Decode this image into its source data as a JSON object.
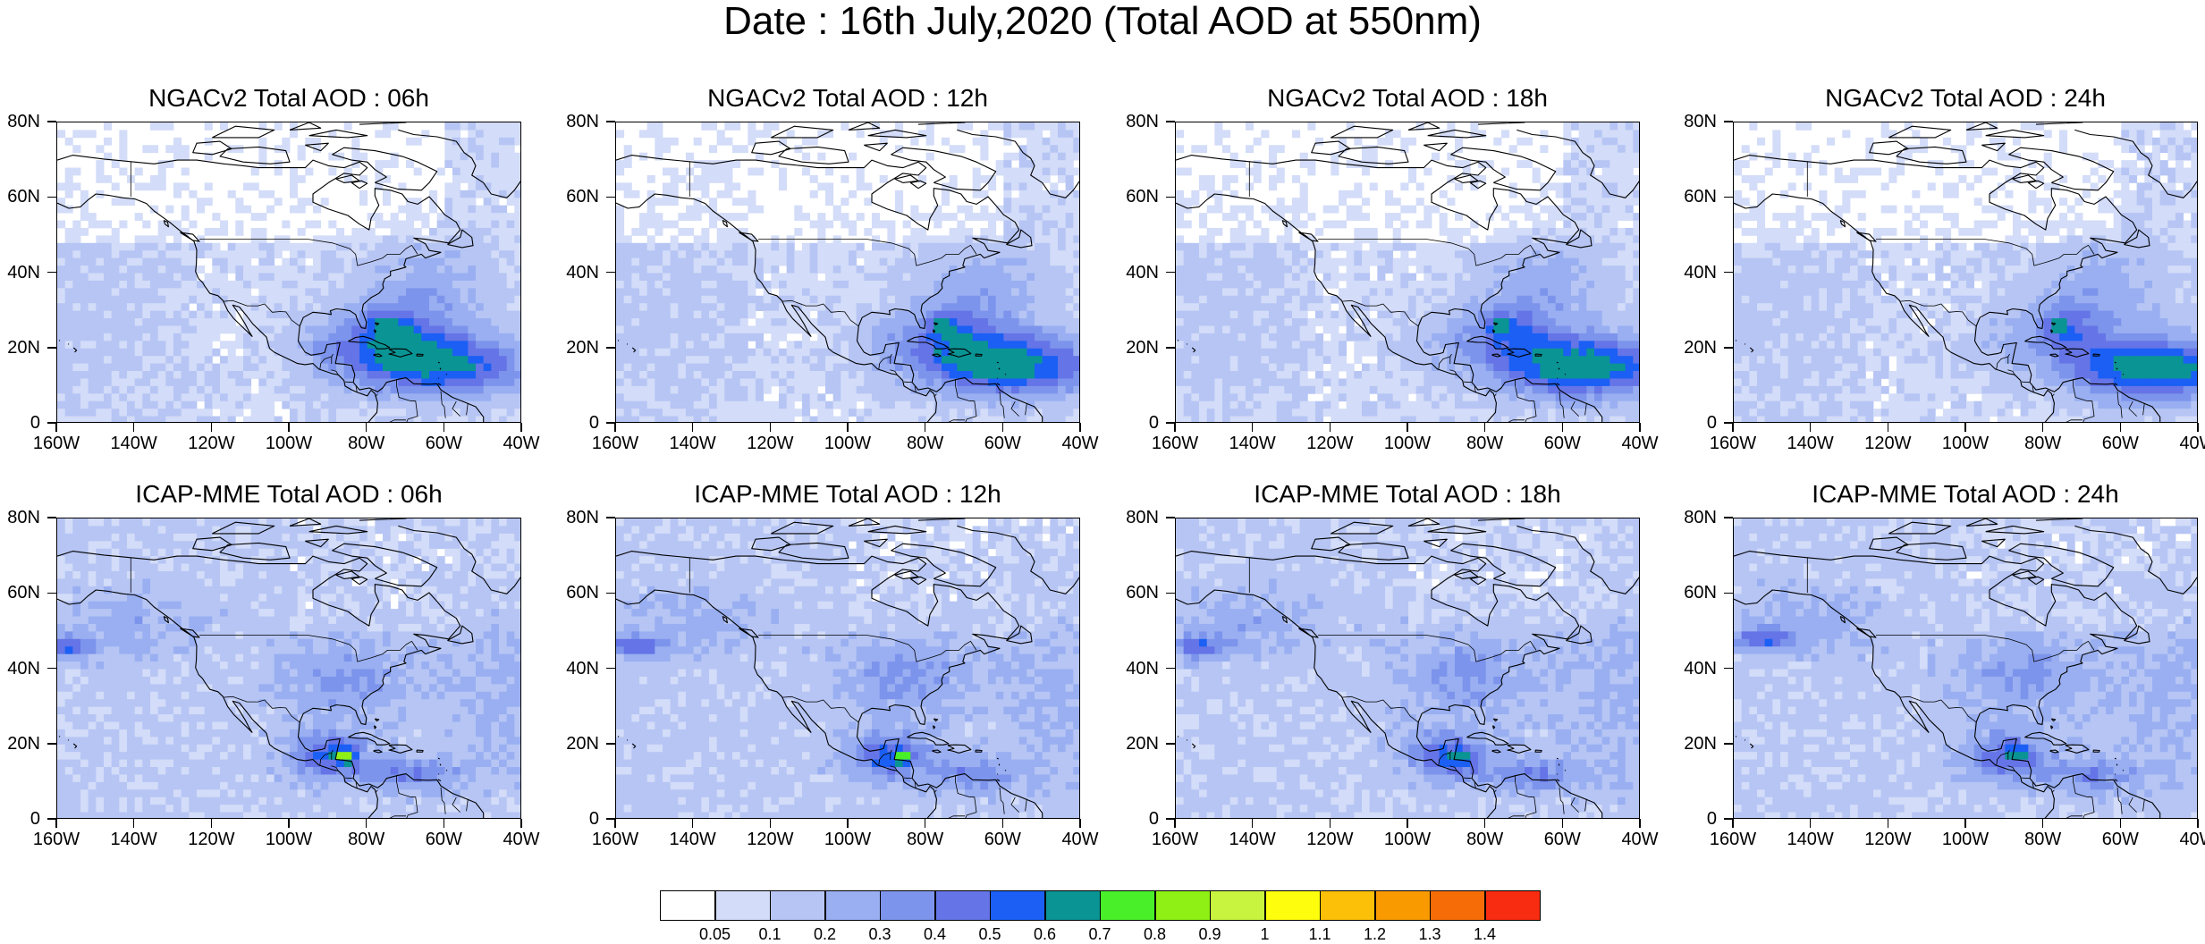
{
  "title": "Date : 16th July,2020 (Total AOD at 550nm)",
  "panels": [
    {
      "title": "NGACv2 Total AOD : 06h",
      "model": "NGACv2",
      "hour": "06h",
      "max_region": "Caribbean / western Atlantic",
      "peak": 0.6
    },
    {
      "title": "NGACv2 Total AOD : 12h",
      "model": "NGACv2",
      "hour": "12h",
      "max_region": "Caribbean / western Atlantic",
      "peak": 0.6
    },
    {
      "title": "NGACv2 Total AOD : 18h",
      "model": "NGACv2",
      "hour": "18h",
      "max_region": "Caribbean / western Atlantic",
      "peak": 0.6
    },
    {
      "title": "NGACv2 Total AOD : 24h",
      "model": "NGACv2",
      "hour": "24h",
      "max_region": "Caribbean / western Atlantic",
      "peak": 0.6
    },
    {
      "title": "ICAP-MME Total AOD : 06h",
      "model": "ICAP-MME",
      "hour": "06h",
      "max_region": "Central America",
      "peak": 0.8
    },
    {
      "title": "ICAP-MME Total AOD : 12h",
      "model": "ICAP-MME",
      "hour": "12h",
      "max_region": "Central America",
      "peak": 0.7
    },
    {
      "title": "ICAP-MME Total AOD : 18h",
      "model": "ICAP-MME",
      "hour": "18h",
      "max_region": "Central America",
      "peak": 0.6
    },
    {
      "title": "ICAP-MME Total AOD : 24h",
      "model": "ICAP-MME",
      "hour": "24h",
      "max_region": "Central America",
      "peak": 0.7
    }
  ],
  "axes": {
    "lat_labels": [
      "80N",
      "60N",
      "40N",
      "20N",
      "0"
    ],
    "lon_labels": [
      "160W",
      "140W",
      "120W",
      "100W",
      "80W",
      "60W",
      "40W"
    ]
  },
  "colorbar": {
    "labels": [
      "0.05",
      "0.1",
      "0.2",
      "0.3",
      "0.4",
      "0.5",
      "0.6",
      "0.7",
      "0.8",
      "0.9",
      "1",
      "1.1",
      "1.2",
      "1.3",
      "1.4"
    ],
    "colors": [
      "#ffffff",
      "#d3dcf8",
      "#b6c5f4",
      "#99aff1",
      "#7d94ec",
      "#6574e6",
      "#1b5ff5",
      "#0a9494",
      "#49f02a",
      "#8ff016",
      "#c8f33f",
      "#fdfd0d",
      "#fbc007",
      "#f99a01",
      "#f66d08",
      "#f82c10"
    ]
  },
  "chart_data": {
    "type": "heatmap",
    "title": "Date : 16th July,2020 (Total AOD at 550nm)",
    "lat_range": [
      "0",
      "80N"
    ],
    "lon_range": [
      "160W",
      "40W"
    ],
    "contour_levels": [
      0.05,
      0.1,
      0.2,
      0.3,
      0.4,
      0.5,
      0.6,
      0.7,
      0.8,
      0.9,
      1,
      1.1,
      1.2,
      1.3,
      1.4
    ]
  }
}
